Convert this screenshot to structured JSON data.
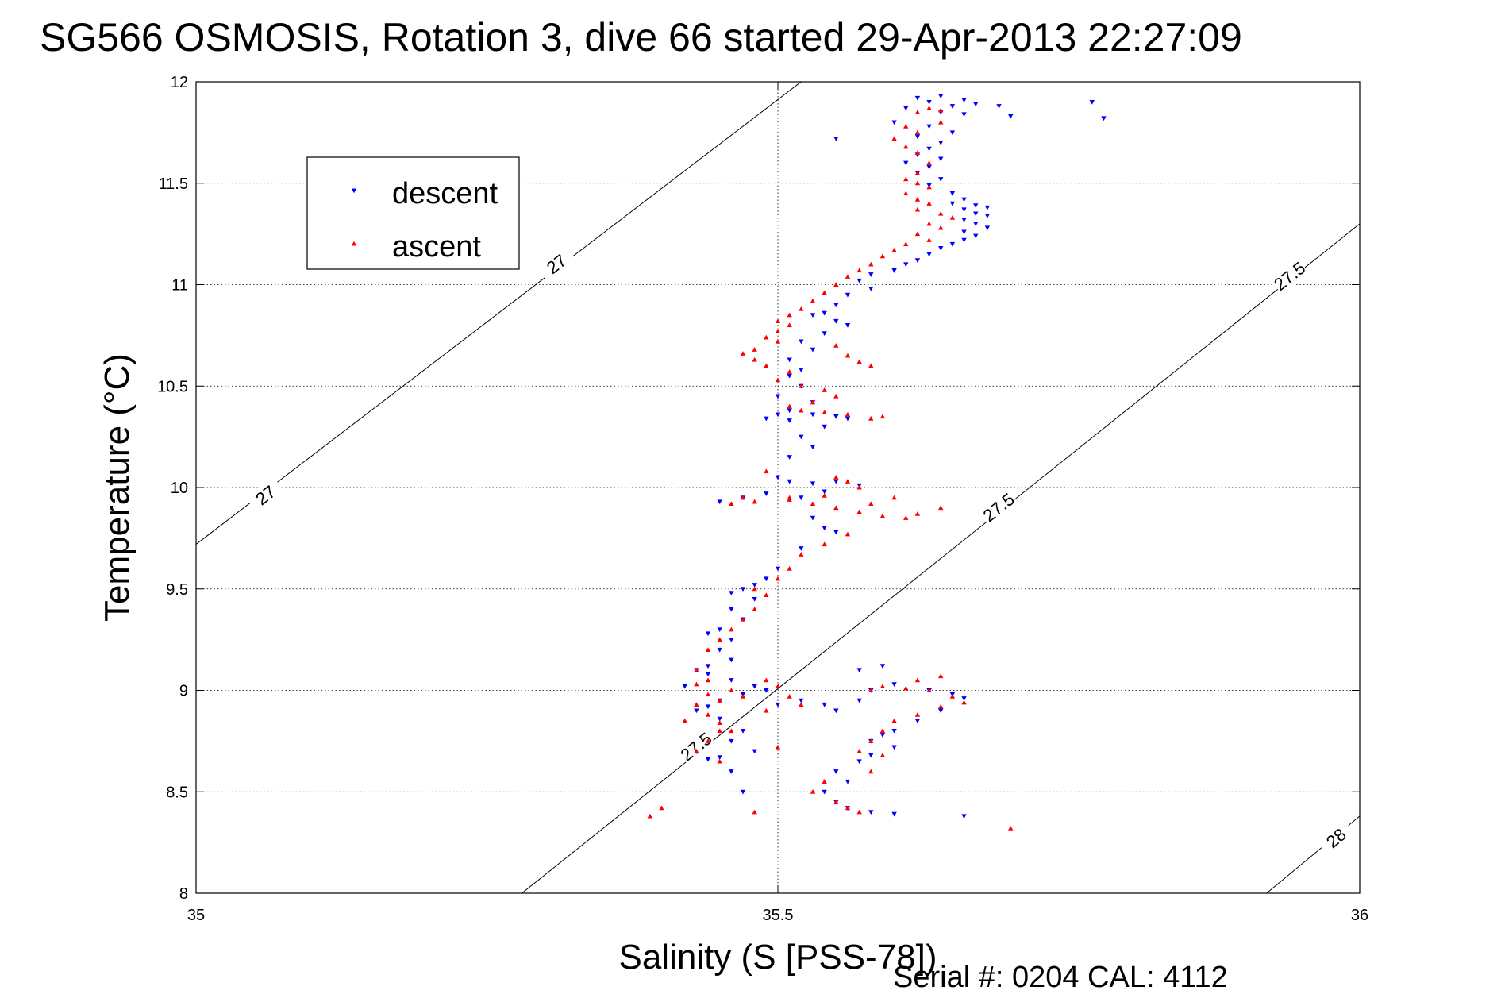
{
  "chart_data": {
    "type": "scatter",
    "title": "SG566 OSMOSIS, Rotation 3, dive 66 started 29-Apr-2013 22:27:09",
    "xlabel": "Salinity (S [PSS-78])",
    "ylabel": "Temperature (°C)",
    "xlim": [
      35,
      36
    ],
    "ylim": [
      8,
      12
    ],
    "xticks": [
      "35",
      "35.5",
      "36"
    ],
    "yticks": [
      "8",
      "8.5",
      "9",
      "9.5",
      "10",
      "10.5",
      "11",
      "11.5",
      "12"
    ],
    "grid": true,
    "legend_position": "top-left",
    "footer": "Serial #: 0204  CAL: 4112",
    "contours": [
      {
        "level": "27",
        "points": [
          [
            35.0,
            9.72
          ],
          [
            35.52,
            12.0
          ]
        ],
        "labels": [
          [
            35.06,
            9.96
          ],
          [
            35.31,
            11.1
          ]
        ]
      },
      {
        "level": "27.5",
        "points": [
          [
            35.28,
            8.0
          ],
          [
            36.0,
            11.3
          ]
        ],
        "labels": [
          [
            35.43,
            8.72
          ],
          [
            35.69,
            9.9
          ],
          [
            35.94,
            11.04
          ]
        ]
      },
      {
        "level": "28",
        "points": [
          [
            35.92,
            8.0
          ],
          [
            36.0,
            8.38
          ]
        ],
        "labels": [
          [
            35.98,
            8.27
          ]
        ]
      }
    ],
    "series": [
      {
        "name": "descent",
        "color": "#0000ff",
        "marker": "triangle-down",
        "points": [
          [
            35.64,
            11.93
          ],
          [
            35.62,
            11.92
          ],
          [
            35.66,
            11.91
          ],
          [
            35.63,
            11.9
          ],
          [
            35.67,
            11.89
          ],
          [
            35.65,
            11.88
          ],
          [
            35.69,
            11.88
          ],
          [
            35.61,
            11.87
          ],
          [
            35.64,
            11.85
          ],
          [
            35.66,
            11.84
          ],
          [
            35.7,
            11.83
          ],
          [
            35.6,
            11.8
          ],
          [
            35.63,
            11.78
          ],
          [
            35.65,
            11.75
          ],
          [
            35.62,
            11.73
          ],
          [
            35.64,
            11.7
          ],
          [
            35.63,
            11.67
          ],
          [
            35.62,
            11.64
          ],
          [
            35.64,
            11.62
          ],
          [
            35.61,
            11.6
          ],
          [
            35.63,
            11.58
          ],
          [
            35.62,
            11.55
          ],
          [
            35.64,
            11.52
          ],
          [
            35.63,
            11.49
          ],
          [
            35.65,
            11.45
          ],
          [
            35.66,
            11.42
          ],
          [
            35.65,
            11.4
          ],
          [
            35.67,
            11.39
          ],
          [
            35.68,
            11.38
          ],
          [
            35.66,
            11.37
          ],
          [
            35.67,
            11.35
          ],
          [
            35.68,
            11.34
          ],
          [
            35.66,
            11.32
          ],
          [
            35.67,
            11.3
          ],
          [
            35.68,
            11.28
          ],
          [
            35.66,
            11.26
          ],
          [
            35.67,
            11.24
          ],
          [
            35.66,
            11.22
          ],
          [
            35.65,
            11.2
          ],
          [
            35.64,
            11.18
          ],
          [
            35.63,
            11.15
          ],
          [
            35.62,
            11.12
          ],
          [
            35.61,
            11.1
          ],
          [
            35.6,
            11.07
          ],
          [
            35.58,
            11.05
          ],
          [
            35.57,
            11.02
          ],
          [
            35.58,
            10.98
          ],
          [
            35.56,
            10.95
          ],
          [
            35.55,
            10.9
          ],
          [
            35.54,
            10.86
          ],
          [
            35.53,
            10.85
          ],
          [
            35.55,
            10.82
          ],
          [
            35.56,
            10.8
          ],
          [
            35.54,
            10.76
          ],
          [
            35.52,
            10.72
          ],
          [
            35.53,
            10.68
          ],
          [
            35.51,
            10.63
          ],
          [
            35.52,
            10.58
          ],
          [
            35.51,
            10.55
          ],
          [
            35.52,
            10.5
          ],
          [
            35.5,
            10.45
          ],
          [
            35.53,
            10.42
          ],
          [
            35.51,
            10.38
          ],
          [
            35.5,
            10.36
          ],
          [
            35.49,
            10.34
          ],
          [
            35.51,
            10.33
          ],
          [
            35.53,
            10.36
          ],
          [
            35.55,
            10.35
          ],
          [
            35.56,
            10.34
          ],
          [
            35.54,
            10.3
          ],
          [
            35.52,
            10.25
          ],
          [
            35.53,
            10.2
          ],
          [
            35.51,
            10.15
          ],
          [
            35.5,
            10.05
          ],
          [
            35.51,
            10.03
          ],
          [
            35.53,
            10.02
          ],
          [
            35.55,
            10.03
          ],
          [
            35.57,
            10.01
          ],
          [
            35.54,
            9.98
          ],
          [
            35.52,
            9.95
          ],
          [
            35.49,
            9.97
          ],
          [
            35.47,
            9.95
          ],
          [
            35.45,
            9.93
          ],
          [
            35.53,
            9.85
          ],
          [
            35.54,
            9.8
          ],
          [
            35.55,
            9.78
          ],
          [
            35.52,
            9.7
          ],
          [
            35.5,
            9.6
          ],
          [
            35.49,
            9.55
          ],
          [
            35.48,
            9.52
          ],
          [
            35.47,
            9.5
          ],
          [
            35.46,
            9.48
          ],
          [
            35.48,
            9.45
          ],
          [
            35.46,
            9.4
          ],
          [
            35.47,
            9.35
          ],
          [
            35.45,
            9.3
          ],
          [
            35.44,
            9.28
          ],
          [
            35.46,
            9.25
          ],
          [
            35.45,
            9.2
          ],
          [
            35.46,
            9.15
          ],
          [
            35.44,
            9.12
          ],
          [
            35.43,
            9.1
          ],
          [
            35.44,
            9.08
          ],
          [
            35.46,
            9.05
          ],
          [
            35.48,
            9.02
          ],
          [
            35.49,
            9.0
          ],
          [
            35.47,
            8.98
          ],
          [
            35.45,
            8.95
          ],
          [
            35.44,
            8.92
          ],
          [
            35.43,
            8.9
          ],
          [
            35.45,
            8.86
          ],
          [
            35.47,
            8.8
          ],
          [
            35.46,
            8.75
          ],
          [
            35.48,
            8.7
          ],
          [
            35.45,
            8.67
          ],
          [
            35.44,
            8.66
          ],
          [
            35.46,
            8.6
          ],
          [
            35.47,
            8.5
          ],
          [
            35.52,
            8.95
          ],
          [
            35.5,
            8.93
          ],
          [
            35.42,
            9.02
          ],
          [
            35.54,
            8.93
          ],
          [
            35.55,
            8.9
          ],
          [
            35.57,
            8.95
          ],
          [
            35.58,
            9.0
          ],
          [
            35.6,
            9.03
          ],
          [
            35.63,
            9.0
          ],
          [
            35.65,
            8.98
          ],
          [
            35.66,
            8.96
          ],
          [
            35.64,
            8.9
          ],
          [
            35.62,
            8.85
          ],
          [
            35.6,
            8.8
          ],
          [
            35.59,
            8.78
          ],
          [
            35.58,
            8.75
          ],
          [
            35.6,
            8.72
          ],
          [
            35.58,
            8.68
          ],
          [
            35.57,
            8.65
          ],
          [
            35.55,
            8.6
          ],
          [
            35.56,
            8.55
          ],
          [
            35.54,
            8.5
          ],
          [
            35.55,
            8.45
          ],
          [
            35.56,
            8.42
          ],
          [
            35.58,
            8.4
          ],
          [
            35.6,
            8.39
          ],
          [
            35.66,
            8.38
          ],
          [
            35.59,
            9.12
          ],
          [
            35.57,
            9.1
          ],
          [
            35.55,
            11.72
          ],
          [
            35.77,
            11.9
          ],
          [
            35.78,
            11.82
          ]
        ]
      },
      {
        "name": "ascent",
        "color": "#ff0000",
        "marker": "triangle-up",
        "points": [
          [
            35.63,
            11.87
          ],
          [
            35.64,
            11.86
          ],
          [
            35.62,
            11.85
          ],
          [
            35.64,
            11.8
          ],
          [
            35.61,
            11.78
          ],
          [
            35.62,
            11.75
          ],
          [
            35.6,
            11.72
          ],
          [
            35.61,
            11.68
          ],
          [
            35.62,
            11.65
          ],
          [
            35.63,
            11.6
          ],
          [
            35.62,
            11.55
          ],
          [
            35.61,
            11.52
          ],
          [
            35.62,
            11.5
          ],
          [
            35.63,
            11.48
          ],
          [
            35.61,
            11.45
          ],
          [
            35.62,
            11.42
          ],
          [
            35.63,
            11.4
          ],
          [
            35.62,
            11.37
          ],
          [
            35.64,
            11.35
          ],
          [
            35.65,
            11.33
          ],
          [
            35.63,
            11.3
          ],
          [
            35.64,
            11.28
          ],
          [
            35.62,
            11.25
          ],
          [
            35.63,
            11.22
          ],
          [
            35.61,
            11.2
          ],
          [
            35.6,
            11.17
          ],
          [
            35.59,
            11.14
          ],
          [
            35.58,
            11.1
          ],
          [
            35.57,
            11.07
          ],
          [
            35.56,
            11.04
          ],
          [
            35.55,
            11.0
          ],
          [
            35.54,
            10.96
          ],
          [
            35.53,
            10.92
          ],
          [
            35.52,
            10.88
          ],
          [
            35.51,
            10.85
          ],
          [
            35.5,
            10.82
          ],
          [
            35.51,
            10.8
          ],
          [
            35.5,
            10.77
          ],
          [
            35.49,
            10.74
          ],
          [
            35.5,
            10.72
          ],
          [
            35.48,
            10.68
          ],
          [
            35.47,
            10.66
          ],
          [
            35.48,
            10.63
          ],
          [
            35.49,
            10.6
          ],
          [
            35.51,
            10.57
          ],
          [
            35.5,
            10.53
          ],
          [
            35.52,
            10.5
          ],
          [
            35.54,
            10.48
          ],
          [
            35.55,
            10.45
          ],
          [
            35.53,
            10.42
          ],
          [
            35.51,
            10.4
          ],
          [
            35.52,
            10.38
          ],
          [
            35.54,
            10.37
          ],
          [
            35.56,
            10.36
          ],
          [
            35.58,
            10.34
          ],
          [
            35.59,
            10.35
          ],
          [
            35.58,
            10.6
          ],
          [
            35.57,
            10.62
          ],
          [
            35.56,
            10.65
          ],
          [
            35.55,
            10.7
          ],
          [
            35.55,
            10.05
          ],
          [
            35.56,
            10.03
          ],
          [
            35.57,
            10.0
          ],
          [
            35.54,
            9.96
          ],
          [
            35.51,
            9.95
          ],
          [
            35.48,
            9.93
          ],
          [
            35.46,
            9.92
          ],
          [
            35.47,
            9.95
          ],
          [
            35.49,
            10.08
          ],
          [
            35.51,
            9.94
          ],
          [
            35.53,
            9.92
          ],
          [
            35.55,
            9.9
          ],
          [
            35.57,
            9.88
          ],
          [
            35.59,
            9.86
          ],
          [
            35.61,
            9.85
          ],
          [
            35.62,
            9.87
          ],
          [
            35.64,
            9.9
          ],
          [
            35.58,
            9.92
          ],
          [
            35.6,
            9.95
          ],
          [
            35.56,
            9.77
          ],
          [
            35.54,
            9.72
          ],
          [
            35.52,
            9.67
          ],
          [
            35.51,
            9.6
          ],
          [
            35.5,
            9.55
          ],
          [
            35.48,
            9.5
          ],
          [
            35.49,
            9.47
          ],
          [
            35.48,
            9.4
          ],
          [
            35.47,
            9.35
          ],
          [
            35.46,
            9.3
          ],
          [
            35.45,
            9.25
          ],
          [
            35.44,
            9.2
          ],
          [
            35.43,
            9.1
          ],
          [
            35.44,
            9.05
          ],
          [
            35.46,
            9.0
          ],
          [
            35.47,
            8.97
          ],
          [
            35.45,
            8.95
          ],
          [
            35.43,
            8.93
          ],
          [
            35.44,
            8.88
          ],
          [
            35.45,
            8.84
          ],
          [
            35.46,
            8.8
          ],
          [
            35.44,
            8.75
          ],
          [
            35.43,
            8.7
          ],
          [
            35.45,
            8.65
          ],
          [
            35.49,
            9.05
          ],
          [
            35.5,
            9.02
          ],
          [
            35.51,
            8.97
          ],
          [
            35.52,
            8.93
          ],
          [
            35.49,
            8.9
          ],
          [
            35.58,
            9.0
          ],
          [
            35.59,
            9.02
          ],
          [
            35.61,
            9.01
          ],
          [
            35.63,
            9.0
          ],
          [
            35.65,
            8.97
          ],
          [
            35.66,
            8.94
          ],
          [
            35.64,
            8.92
          ],
          [
            35.62,
            8.88
          ],
          [
            35.6,
            8.85
          ],
          [
            35.59,
            8.8
          ],
          [
            35.58,
            8.75
          ],
          [
            35.57,
            8.7
          ],
          [
            35.59,
            8.68
          ],
          [
            35.58,
            8.6
          ],
          [
            35.54,
            8.55
          ],
          [
            35.53,
            8.5
          ],
          [
            35.55,
            8.45
          ],
          [
            35.56,
            8.42
          ],
          [
            35.57,
            8.4
          ],
          [
            35.48,
            8.4
          ],
          [
            35.4,
            8.42
          ],
          [
            35.39,
            8.38
          ],
          [
            35.62,
            9.05
          ],
          [
            35.64,
            9.07
          ],
          [
            35.5,
            8.72
          ],
          [
            35.45,
            8.8
          ],
          [
            35.42,
            8.85
          ],
          [
            35.44,
            8.98
          ],
          [
            35.43,
            9.03
          ],
          [
            35.7,
            8.32
          ]
        ]
      }
    ]
  }
}
